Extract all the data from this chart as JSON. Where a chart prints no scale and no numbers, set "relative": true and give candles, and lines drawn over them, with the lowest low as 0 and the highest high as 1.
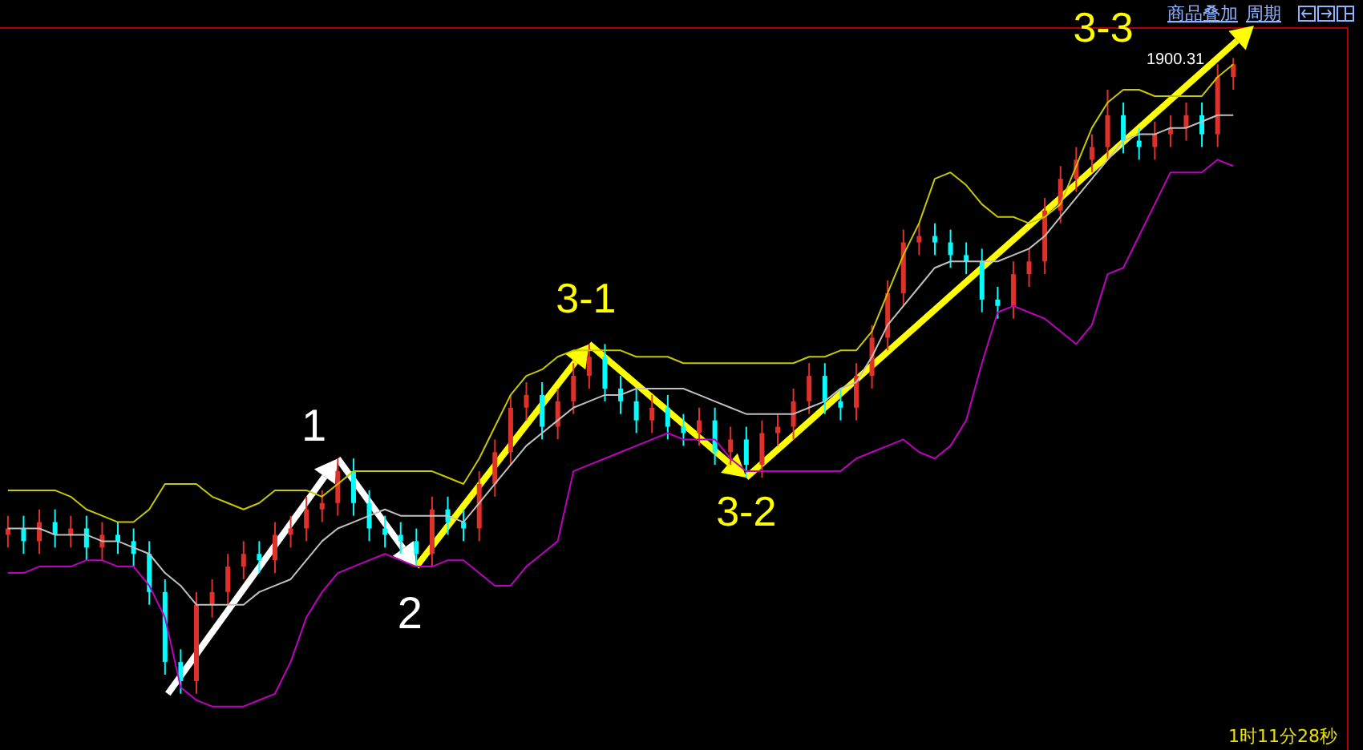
{
  "chart_data": {
    "type": "candlestick",
    "relative": true,
    "categories": [
      null,
      null,
      null,
      null,
      null,
      null,
      null,
      null,
      null,
      null,
      null,
      null,
      null,
      null,
      null,
      null,
      null,
      null,
      null,
      null,
      null,
      null,
      null,
      null,
      null,
      null,
      null,
      null,
      null,
      null,
      null,
      null,
      null,
      null,
      null,
      null,
      null,
      null,
      null,
      null,
      null,
      null,
      null,
      null,
      null,
      null,
      null,
      null,
      null,
      null,
      null,
      null,
      null,
      null,
      null,
      null,
      null,
      null,
      null,
      null,
      null,
      null,
      null,
      null,
      null,
      null,
      null,
      null,
      null,
      null,
      null,
      null,
      null,
      null,
      null,
      null,
      null,
      null,
      null
    ],
    "ohlc": [
      [
        0.25,
        0.28,
        0.23,
        0.26
      ],
      [
        0.26,
        0.28,
        0.22,
        0.24
      ],
      [
        0.24,
        0.29,
        0.22,
        0.27
      ],
      [
        0.27,
        0.29,
        0.23,
        0.25
      ],
      [
        0.25,
        0.28,
        0.23,
        0.26
      ],
      [
        0.26,
        0.28,
        0.21,
        0.23
      ],
      [
        0.23,
        0.27,
        0.21,
        0.25
      ],
      [
        0.25,
        0.27,
        0.22,
        0.24
      ],
      [
        0.24,
        0.26,
        0.2,
        0.22
      ],
      [
        0.22,
        0.24,
        0.14,
        0.16
      ],
      [
        0.16,
        0.18,
        0.03,
        0.05
      ],
      [
        0.05,
        0.07,
        0,
        0.02
      ],
      [
        0.02,
        0.16,
        0,
        0.14
      ],
      [
        0.14,
        0.18,
        0.12,
        0.16
      ],
      [
        0.16,
        0.22,
        0.14,
        0.2
      ],
      [
        0.2,
        0.24,
        0.18,
        0.22
      ],
      [
        0.22,
        0.24,
        0.19,
        0.21
      ],
      [
        0.21,
        0.27,
        0.19,
        0.25
      ],
      [
        0.25,
        0.28,
        0.23,
        0.26
      ],
      [
        0.26,
        0.31,
        0.24,
        0.29
      ],
      [
        0.29,
        0.32,
        0.27,
        0.3
      ],
      [
        0.3,
        0.37,
        0.28,
        0.35
      ],
      [
        0.35,
        0.37,
        0.28,
        0.3
      ],
      [
        0.3,
        0.32,
        0.24,
        0.26
      ],
      [
        0.26,
        0.28,
        0.23,
        0.25
      ],
      [
        0.25,
        0.27,
        0.22,
        0.24
      ],
      [
        0.24,
        0.26,
        0.2,
        0.22
      ],
      [
        0.22,
        0.31,
        0.2,
        0.29
      ],
      [
        0.29,
        0.31,
        0.25,
        0.27
      ],
      [
        0.27,
        0.29,
        0.24,
        0.26
      ],
      [
        0.26,
        0.35,
        0.24,
        0.33
      ],
      [
        0.33,
        0.4,
        0.31,
        0.38
      ],
      [
        0.38,
        0.47,
        0.36,
        0.45
      ],
      [
        0.45,
        0.49,
        0.43,
        0.47
      ],
      [
        0.47,
        0.49,
        0.4,
        0.42
      ],
      [
        0.42,
        0.48,
        0.4,
        0.46
      ],
      [
        0.46,
        0.52,
        0.44,
        0.5
      ],
      [
        0.5,
        0.55,
        0.48,
        0.53
      ],
      [
        0.53,
        0.55,
        0.46,
        0.48
      ],
      [
        0.48,
        0.5,
        0.44,
        0.46
      ],
      [
        0.46,
        0.48,
        0.41,
        0.43
      ],
      [
        0.43,
        0.47,
        0.41,
        0.45
      ],
      [
        0.45,
        0.47,
        0.4,
        0.42
      ],
      [
        0.42,
        0.44,
        0.39,
        0.41
      ],
      [
        0.41,
        0.45,
        0.39,
        0.43
      ],
      [
        0.43,
        0.45,
        0.36,
        0.38
      ],
      [
        0.38,
        0.42,
        0.36,
        0.4
      ],
      [
        0.4,
        0.42,
        0.34,
        0.36
      ],
      [
        0.36,
        0.43,
        0.34,
        0.41
      ],
      [
        0.41,
        0.44,
        0.39,
        0.42
      ],
      [
        0.42,
        0.48,
        0.4,
        0.46
      ],
      [
        0.46,
        0.52,
        0.44,
        0.5
      ],
      [
        0.5,
        0.52,
        0.44,
        0.46
      ],
      [
        0.46,
        0.48,
        0.43,
        0.45
      ],
      [
        0.45,
        0.52,
        0.43,
        0.5
      ],
      [
        0.5,
        0.58,
        0.48,
        0.56
      ],
      [
        0.56,
        0.65,
        0.54,
        0.63
      ],
      [
        0.63,
        0.73,
        0.61,
        0.71
      ],
      [
        0.71,
        0.74,
        0.69,
        0.72
      ],
      [
        0.72,
        0.74,
        0.69,
        0.71
      ],
      [
        0.71,
        0.73,
        0.67,
        0.69
      ],
      [
        0.69,
        0.71,
        0.66,
        0.68
      ],
      [
        0.68,
        0.7,
        0.6,
        0.62
      ],
      [
        0.62,
        0.64,
        0.59,
        0.61
      ],
      [
        0.61,
        0.68,
        0.59,
        0.66
      ],
      [
        0.66,
        0.7,
        0.64,
        0.68
      ],
      [
        0.68,
        0.78,
        0.66,
        0.76
      ],
      [
        0.76,
        0.83,
        0.74,
        0.81
      ],
      [
        0.81,
        0.86,
        0.79,
        0.84
      ],
      [
        0.84,
        0.88,
        0.82,
        0.86
      ],
      [
        0.86,
        0.95,
        0.84,
        0.91
      ],
      [
        0.91,
        0.93,
        0.85,
        0.87
      ],
      [
        0.87,
        0.89,
        0.84,
        0.86
      ],
      [
        0.86,
        0.9,
        0.84,
        0.88
      ],
      [
        0.88,
        0.91,
        0.86,
        0.89
      ],
      [
        0.89,
        0.93,
        0.87,
        0.91
      ],
      [
        0.91,
        0.93,
        0.86,
        0.88
      ],
      [
        0.88,
        0.99,
        0.86,
        0.97
      ],
      [
        0.97,
        1,
        0.95,
        0.99
      ]
    ],
    "colors": [
      "#e0302a",
      "#00ffff",
      "#e0302a",
      "#00ffff",
      "#e0302a",
      "#00ffff",
      "#e0302a",
      "#00ffff",
      "#00ffff",
      "#00ffff",
      "#00ffff",
      "#00ffff",
      "#e0302a",
      "#e0302a",
      "#e0302a",
      "#e0302a",
      "#00ffff",
      "#e0302a",
      "#e0302a",
      "#e0302a",
      "#e0302a",
      "#e0302a",
      "#00ffff",
      "#00ffff",
      "#00ffff",
      "#00ffff",
      "#00ffff",
      "#e0302a",
      "#00ffff",
      "#00ffff",
      "#e0302a",
      "#e0302a",
      "#e0302a",
      "#e0302a",
      "#00ffff",
      "#e0302a",
      "#e0302a",
      "#e0302a",
      "#00ffff",
      "#00ffff",
      "#00ffff",
      "#e0302a",
      "#00ffff",
      "#00ffff",
      "#e0302a",
      "#00ffff",
      "#e0302a",
      "#00ffff",
      "#e0302a",
      "#e0302a",
      "#e0302a",
      "#e0302a",
      "#00ffff",
      "#00ffff",
      "#e0302a",
      "#e0302a",
      "#e0302a",
      "#e0302a",
      "#e0302a",
      "#00ffff",
      "#00ffff",
      "#00ffff",
      "#00ffff",
      "#00ffff",
      "#e0302a",
      "#e0302a",
      "#e0302a",
      "#e0302a",
      "#e0302a",
      "#e0302a",
      "#e0302a",
      "#00ffff",
      "#00ffff",
      "#e0302a",
      "#e0302a",
      "#e0302a",
      "#00ffff",
      "#e0302a",
      "#e0302a"
    ],
    "series": [
      {
        "type": "line",
        "color": "#c8c800",
        "values": [
          0.32,
          0.32,
          0.32,
          0.32,
          0.31,
          0.29,
          0.28,
          0.27,
          0.27,
          0.29,
          0.33,
          0.33,
          0.33,
          0.31,
          0.3,
          0.29,
          0.3,
          0.32,
          0.32,
          0.32,
          0.31,
          0.33,
          0.35,
          0.35,
          0.35,
          0.35,
          0.35,
          0.35,
          0.34,
          0.33,
          0.37,
          0.42,
          0.47,
          0.5,
          0.51,
          0.53,
          0.54,
          0.54,
          0.54,
          0.54,
          0.53,
          0.53,
          0.53,
          0.52,
          0.52,
          0.52,
          0.52,
          0.52,
          0.52,
          0.52,
          0.52,
          0.53,
          0.53,
          0.54,
          0.54,
          0.57,
          0.63,
          0.69,
          0.74,
          0.81,
          0.82,
          0.8,
          0.77,
          0.75,
          0.75,
          0.74,
          0.75,
          0.77,
          0.83,
          0.89,
          0.93,
          0.95,
          0.95,
          0.94,
          0.94,
          0.94,
          0.94,
          0.97,
          0.99
        ]
      },
      {
        "type": "line",
        "color": "#c0c0c0",
        "values": [
          0.26,
          0.26,
          0.26,
          0.25,
          0.25,
          0.25,
          0.24,
          0.24,
          0.23,
          0.22,
          0.19,
          0.17,
          0.14,
          0.14,
          0.14,
          0.14,
          0.16,
          0.17,
          0.18,
          0.21,
          0.24,
          0.26,
          0.27,
          0.28,
          0.29,
          0.28,
          0.28,
          0.28,
          0.28,
          0.27,
          0.3,
          0.33,
          0.36,
          0.39,
          0.41,
          0.43,
          0.45,
          0.46,
          0.47,
          0.47,
          0.48,
          0.48,
          0.48,
          0.48,
          0.47,
          0.46,
          0.45,
          0.44,
          0.44,
          0.44,
          0.44,
          0.45,
          0.46,
          0.48,
          0.49,
          0.53,
          0.58,
          0.61,
          0.64,
          0.67,
          0.68,
          0.68,
          0.68,
          0.68,
          0.69,
          0.7,
          0.72,
          0.75,
          0.78,
          0.81,
          0.84,
          0.87,
          0.88,
          0.88,
          0.89,
          0.89,
          0.9,
          0.91,
          0.91
        ]
      },
      {
        "type": "line",
        "color": "#c000c0",
        "values": [
          0.19,
          0.19,
          0.2,
          0.2,
          0.2,
          0.21,
          0.21,
          0.2,
          0.2,
          0.17,
          0.12,
          0.01,
          -0.01,
          -0.02,
          -0.02,
          -0.02,
          -0.01,
          0,
          0.05,
          0.12,
          0.16,
          0.19,
          0.2,
          0.21,
          0.22,
          0.21,
          0.2,
          0.2,
          0.21,
          0.21,
          0.19,
          0.17,
          0.17,
          0.2,
          0.22,
          0.24,
          0.35,
          0.36,
          0.37,
          0.38,
          0.39,
          0.4,
          0.41,
          0.4,
          0.4,
          0.4,
          0.37,
          0.35,
          0.35,
          0.35,
          0.35,
          0.35,
          0.35,
          0.35,
          0.37,
          0.38,
          0.39,
          0.4,
          0.38,
          0.37,
          0.39,
          0.43,
          0.52,
          0.6,
          0.61,
          0.6,
          0.59,
          0.57,
          0.55,
          0.58,
          0.66,
          0.67,
          0.72,
          0.77,
          0.82,
          0.82,
          0.82,
          0.84,
          0.83
        ]
      }
    ],
    "annotations": [
      "1900.31",
      "1",
      "2",
      "3-1",
      "3-2",
      "3-3",
      "商品叠加",
      "周期",
      "1时11分28秒"
    ]
  }
}
